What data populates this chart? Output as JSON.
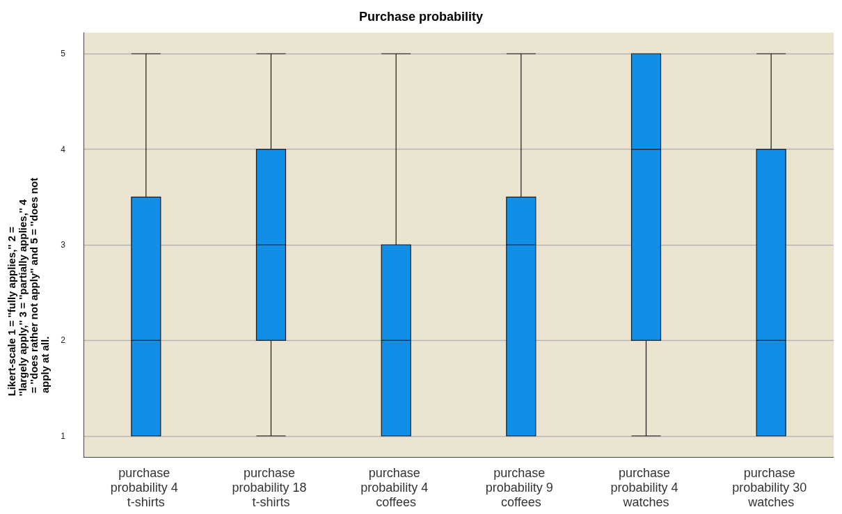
{
  "chart_data": {
    "type": "box",
    "title": "Purchase probability",
    "ylabel": "Likert-scale 1 = ''fully applies,'' 2 = ''largely apply,'' 3 = ''partially applies,'' 4 = ''does rather not apply'' and 5 = ''does not apply at all.",
    "categories": [
      "purchase probability 4 t-shirts",
      "purchase probability 18 t-shirts",
      "purchase probability 4 coffees",
      "purchase probability 9 coffees",
      "purchase probability 4 watches",
      "purchase probability 30 watches"
    ],
    "series": [
      {
        "color": "#118ee6",
        "boxes": [
          {
            "low": 1,
            "q1": 1,
            "median": 2,
            "q3": 3.5,
            "high": 5
          },
          {
            "low": 1,
            "q1": 2,
            "median": 3,
            "q3": 4,
            "high": 5
          },
          {
            "low": 1,
            "q1": 1,
            "median": 2,
            "q3": 3,
            "high": 5
          },
          {
            "low": 1,
            "q1": 1,
            "median": 3,
            "q3": 3.5,
            "high": 5
          },
          {
            "low": 1,
            "q1": 2,
            "median": 4,
            "q3": 5,
            "high": 5
          },
          {
            "low": 1,
            "q1": 1,
            "median": 2,
            "q3": 4,
            "high": 5
          }
        ]
      }
    ],
    "ylim": [
      0.78,
      5.22
    ],
    "yticks": [
      1,
      2,
      3,
      4,
      5
    ],
    "grid": "y"
  }
}
